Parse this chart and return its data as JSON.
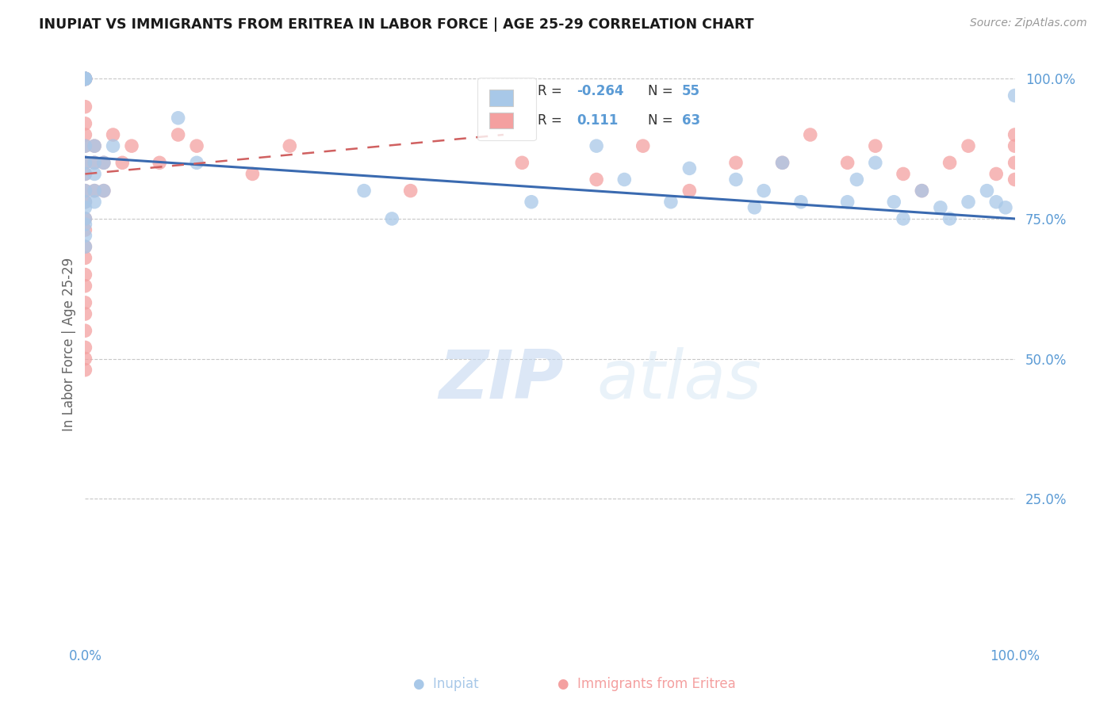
{
  "title": "INUPIAT VS IMMIGRANTS FROM ERITREA IN LABOR FORCE | AGE 25-29 CORRELATION CHART",
  "source": "Source: ZipAtlas.com",
  "ylabel": "In Labor Force | Age 25-29",
  "xlim": [
    0.0,
    1.0
  ],
  "ylim": [
    0.0,
    1.05
  ],
  "xtick_labels": [
    "0.0%",
    "100.0%"
  ],
  "ytick_labels": [
    "25.0%",
    "50.0%",
    "75.0%",
    "100.0%"
  ],
  "ytick_positions": [
    0.25,
    0.5,
    0.75,
    1.0
  ],
  "watermark_text": "ZIPatlas",
  "blue_color": "#a8c8e8",
  "pink_color": "#f4a0a0",
  "blue_line_color": "#3a6ab0",
  "pink_line_color": "#d06060",
  "label_color": "#5b9bd5",
  "inupiat_x": [
    0.0,
    0.0,
    0.0,
    0.0,
    0.0,
    0.0,
    0.0,
    0.0,
    0.0,
    0.0,
    0.0,
    0.0,
    0.0,
    0.0,
    0.0,
    0.0,
    0.0,
    0.0,
    0.0,
    0.0,
    0.01,
    0.01,
    0.01,
    0.01,
    0.01,
    0.02,
    0.02,
    0.03,
    0.1,
    0.12,
    0.3,
    0.33,
    0.48,
    0.55,
    0.58,
    0.63,
    0.65,
    0.7,
    0.72,
    0.73,
    0.75,
    0.77,
    0.82,
    0.83,
    0.85,
    0.87,
    0.88,
    0.9,
    0.92,
    0.93,
    0.95,
    0.97,
    0.98,
    0.99,
    1.0
  ],
  "inupiat_y": [
    1.0,
    1.0,
    1.0,
    1.0,
    1.0,
    1.0,
    1.0,
    1.0,
    1.0,
    1.0,
    0.88,
    0.85,
    0.83,
    0.8,
    0.78,
    0.77,
    0.75,
    0.74,
    0.72,
    0.7,
    0.88,
    0.85,
    0.83,
    0.8,
    0.78,
    0.85,
    0.8,
    0.88,
    0.93,
    0.85,
    0.8,
    0.75,
    0.78,
    0.88,
    0.82,
    0.78,
    0.84,
    0.82,
    0.77,
    0.8,
    0.85,
    0.78,
    0.78,
    0.82,
    0.85,
    0.78,
    0.75,
    0.8,
    0.77,
    0.75,
    0.78,
    0.8,
    0.78,
    0.77,
    0.97
  ],
  "eritrea_x": [
    0.0,
    0.0,
    0.0,
    0.0,
    0.0,
    0.0,
    0.0,
    0.0,
    0.0,
    0.0,
    0.0,
    0.0,
    0.0,
    0.0,
    0.0,
    0.0,
    0.0,
    0.0,
    0.0,
    0.0,
    0.0,
    0.0,
    0.0,
    0.0,
    0.0,
    0.0,
    0.0,
    0.0,
    0.0,
    0.0,
    0.01,
    0.01,
    0.01,
    0.02,
    0.02,
    0.03,
    0.04,
    0.05,
    0.08,
    0.1,
    0.12,
    0.18,
    0.22,
    0.35,
    0.47,
    0.55,
    0.6,
    0.65,
    0.7,
    0.75,
    0.78,
    0.82,
    0.85,
    0.88,
    0.9,
    0.93,
    0.95,
    0.98,
    1.0,
    1.0,
    1.0,
    1.0
  ],
  "eritrea_y": [
    1.0,
    1.0,
    1.0,
    1.0,
    1.0,
    1.0,
    1.0,
    1.0,
    1.0,
    1.0,
    0.95,
    0.92,
    0.9,
    0.88,
    0.85,
    0.83,
    0.8,
    0.78,
    0.75,
    0.73,
    0.7,
    0.68,
    0.65,
    0.63,
    0.6,
    0.58,
    0.55,
    0.52,
    0.5,
    0.48,
    0.88,
    0.85,
    0.8,
    0.85,
    0.8,
    0.9,
    0.85,
    0.88,
    0.85,
    0.9,
    0.88,
    0.83,
    0.88,
    0.8,
    0.85,
    0.82,
    0.88,
    0.8,
    0.85,
    0.85,
    0.9,
    0.85,
    0.88,
    0.83,
    0.8,
    0.85,
    0.88,
    0.83,
    0.82,
    0.85,
    0.88,
    0.9
  ],
  "blue_trend_x0": 0.0,
  "blue_trend_y0": 0.86,
  "blue_trend_x1": 1.0,
  "blue_trend_y1": 0.75,
  "pink_trend_x0": 0.0,
  "pink_trend_y0": 0.83,
  "pink_trend_x1": 0.45,
  "pink_trend_y1": 0.9
}
